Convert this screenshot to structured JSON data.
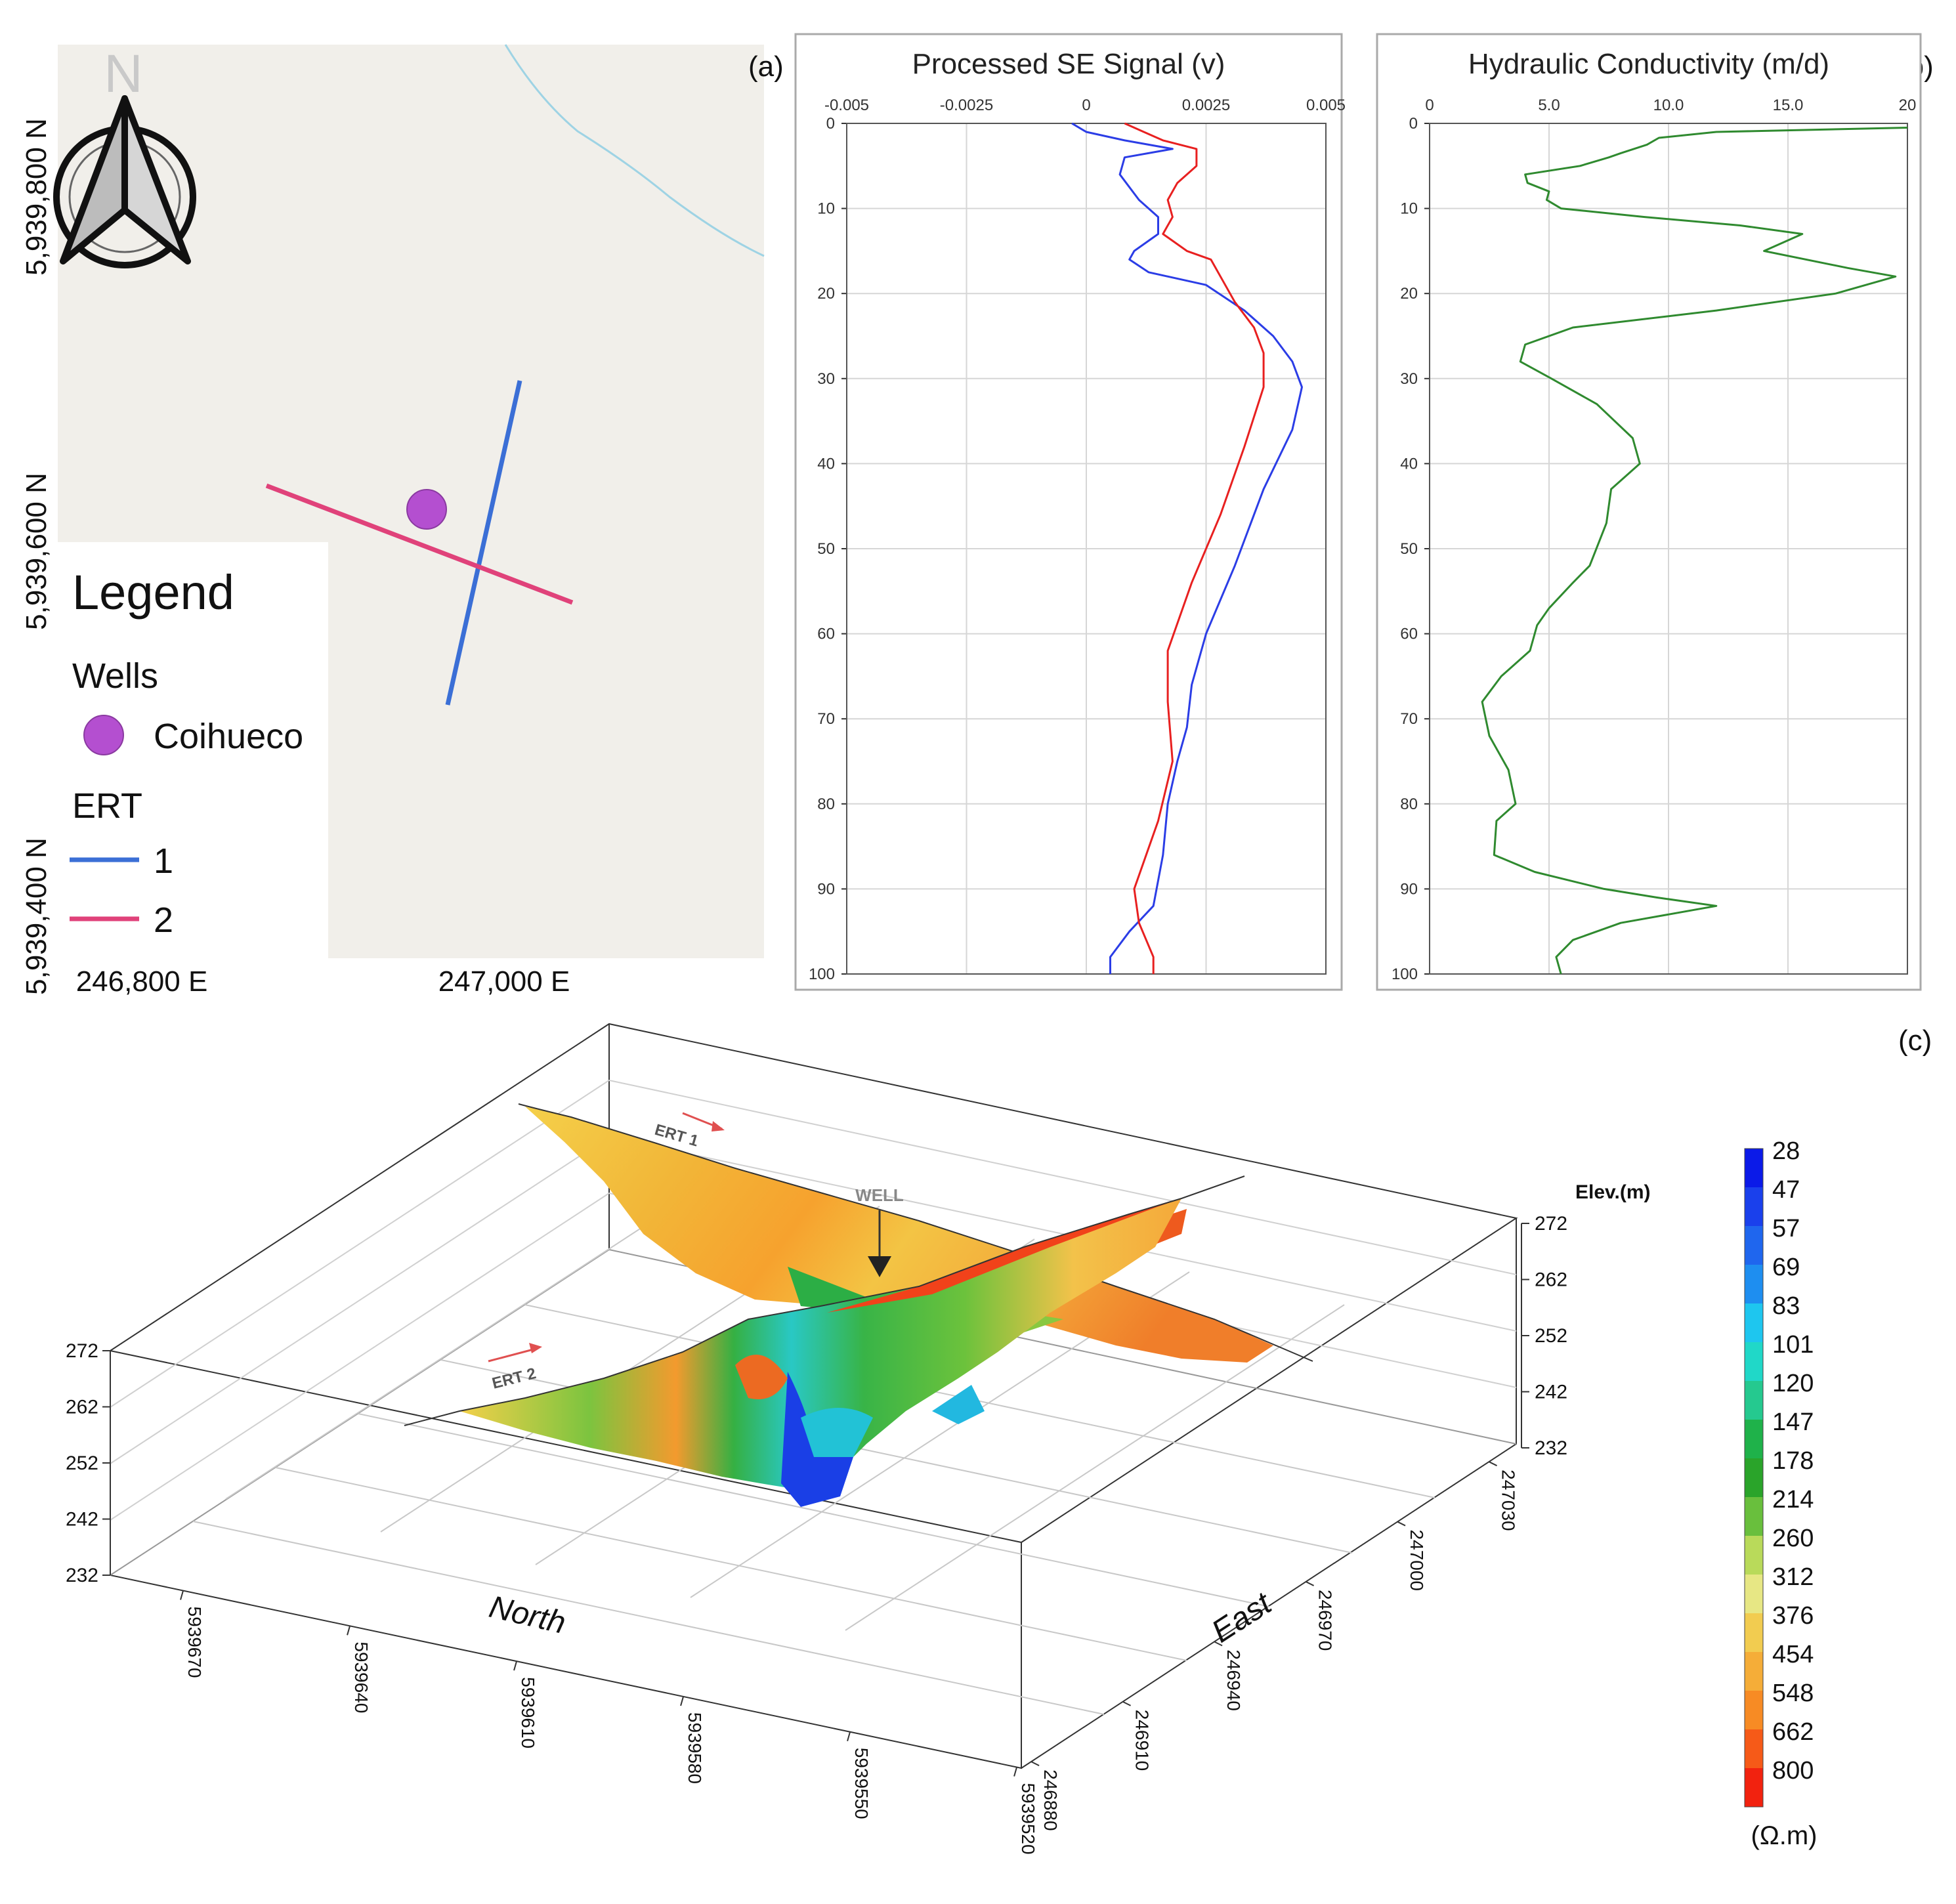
{
  "panel_labels": [
    "(a)",
    "(b)",
    "(c)"
  ],
  "map": {
    "north_label": "N",
    "y_ticks": [
      "5,939,800 N",
      "5,939,600 N",
      "5,939,400 N"
    ],
    "x_ticks": [
      "246,800 E",
      "247,000 E"
    ],
    "legend_title": "Legend",
    "wells_heading": "Wells",
    "well_name": "Coihueco",
    "ert_heading": "ERT",
    "ert_items": [
      "1",
      "2"
    ],
    "colors": {
      "ert1": "#3b6fd6",
      "ert2": "#e0427a",
      "well": "#b44fd0",
      "river": "#9ed3e4",
      "bg": "#f1efea"
    }
  },
  "chart_data": [
    {
      "type": "line",
      "title": "Processed SE Signal (v)",
      "x_ticks": [
        "-0.005",
        "-0.0025",
        "0",
        "0.0025",
        "0.005"
      ],
      "y_ticks": [
        "0",
        "10",
        "20",
        "30",
        "40",
        "50",
        "60",
        "70",
        "80",
        "90",
        "100"
      ],
      "xlim": [
        -0.005,
        0.005
      ],
      "ylim": [
        0,
        100
      ],
      "y_inverted": true,
      "grid": true,
      "series": [
        {
          "color": "#2b3de6",
          "points": [
            [
              -0.0003,
              0
            ],
            [
              0,
              1
            ],
            [
              0.0008,
              2
            ],
            [
              0.0018,
              3
            ],
            [
              0.0008,
              4
            ],
            [
              0.0007,
              6
            ],
            [
              0.0011,
              9
            ],
            [
              0.0015,
              11
            ],
            [
              0.0015,
              13
            ],
            [
              0.001,
              15
            ],
            [
              0.0009,
              16
            ],
            [
              0.0013,
              17.5
            ],
            [
              0.0025,
              19
            ],
            [
              0.0033,
              22
            ],
            [
              0.0039,
              25
            ],
            [
              0.0043,
              28
            ],
            [
              0.0045,
              31
            ],
            [
              0.0043,
              36
            ],
            [
              0.0037,
              43
            ],
            [
              0.0031,
              52
            ],
            [
              0.0025,
              60
            ],
            [
              0.0022,
              66
            ],
            [
              0.0021,
              71
            ],
            [
              0.0019,
              75
            ],
            [
              0.0017,
              80
            ],
            [
              0.0016,
              86
            ],
            [
              0.0014,
              92
            ],
            [
              0.0009,
              95
            ],
            [
              0.0005,
              98
            ],
            [
              0.0005,
              100
            ]
          ]
        },
        {
          "color": "#e82020",
          "points": [
            [
              0.0008,
              0
            ],
            [
              0.0012,
              1
            ],
            [
              0.0016,
              2
            ],
            [
              0.0023,
              3
            ],
            [
              0.0023,
              5
            ],
            [
              0.0019,
              7
            ],
            [
              0.0017,
              9
            ],
            [
              0.0018,
              11
            ],
            [
              0.0016,
              13
            ],
            [
              0.0021,
              15
            ],
            [
              0.0026,
              16
            ],
            [
              0.0028,
              18
            ],
            [
              0.0031,
              21
            ],
            [
              0.0035,
              24
            ],
            [
              0.0037,
              27
            ],
            [
              0.0037,
              31
            ],
            [
              0.0033,
              38
            ],
            [
              0.0028,
              46
            ],
            [
              0.0022,
              54
            ],
            [
              0.0017,
              62
            ],
            [
              0.0017,
              68
            ],
            [
              0.0018,
              75
            ],
            [
              0.0015,
              82
            ],
            [
              0.001,
              90
            ],
            [
              0.0011,
              94
            ],
            [
              0.0014,
              98
            ],
            [
              0.0014,
              100
            ]
          ]
        }
      ]
    },
    {
      "type": "line",
      "title": "Hydraulic Conductivity (m/d)",
      "x_ticks": [
        "0",
        "5.0",
        "10.0",
        "15.0",
        "20"
      ],
      "y_ticks": [
        "0",
        "10",
        "20",
        "30",
        "40",
        "50",
        "60",
        "70",
        "80",
        "90",
        "100"
      ],
      "xlim": [
        0,
        20
      ],
      "ylim": [
        0,
        100
      ],
      "y_inverted": true,
      "grid": true,
      "series": [
        {
          "color": "#2f8a2f",
          "points": [
            [
              20,
              0.5
            ],
            [
              12,
              1
            ],
            [
              9.6,
              1.7
            ],
            [
              9.1,
              2.5
            ],
            [
              8,
              3.5
            ],
            [
              7.5,
              4
            ],
            [
              6.3,
              5
            ],
            [
              4,
              6
            ],
            [
              4.1,
              7
            ],
            [
              5,
              8
            ],
            [
              4.9,
              9
            ],
            [
              5.5,
              10
            ],
            [
              9,
              11
            ],
            [
              13,
              12
            ],
            [
              15.6,
              13
            ],
            [
              14,
              15
            ],
            [
              17.5,
              17
            ],
            [
              19.5,
              18
            ],
            [
              17,
              20
            ],
            [
              12,
              22
            ],
            [
              6,
              24
            ],
            [
              4,
              26
            ],
            [
              3.8,
              28
            ],
            [
              5.1,
              30
            ],
            [
              7,
              33
            ],
            [
              8.5,
              37
            ],
            [
              8.8,
              40
            ],
            [
              7.6,
              43
            ],
            [
              7.4,
              47
            ],
            [
              6.7,
              52
            ],
            [
              6,
              54
            ],
            [
              5,
              57
            ],
            [
              4.5,
              59
            ],
            [
              4.2,
              62
            ],
            [
              3,
              65
            ],
            [
              2.2,
              68
            ],
            [
              2.5,
              72
            ],
            [
              3.3,
              76
            ],
            [
              3.6,
              80
            ],
            [
              2.8,
              82
            ],
            [
              2.7,
              86
            ],
            [
              4.4,
              88
            ],
            [
              7.3,
              90
            ],
            [
              9.5,
              91
            ],
            [
              12,
              92
            ],
            [
              8,
              94
            ],
            [
              6,
              96
            ],
            [
              5.3,
              98
            ],
            [
              5.5,
              100
            ]
          ]
        }
      ]
    },
    {
      "type": "table",
      "title": "Elev.(m)",
      "elevation_ticks": [
        "272",
        "262",
        "252",
        "242",
        "232"
      ],
      "north_label": "North",
      "north_ticks": [
        "5939670",
        "5939640",
        "5939610",
        "5939580",
        "5939550",
        "5939520"
      ],
      "east_label": "East",
      "east_ticks": [
        "246880",
        "246910",
        "246940",
        "246970",
        "247000",
        "247030"
      ],
      "annotations": [
        "ERT 1",
        "ERT 2",
        "WELL"
      ],
      "colorbar": {
        "unit": "(Ω.m)",
        "values": [
          "28",
          "47",
          "57",
          "69",
          "83",
          "101",
          "120",
          "147",
          "178",
          "214",
          "260",
          "312",
          "376",
          "454",
          "548",
          "662",
          "800"
        ],
        "colors": [
          "#0b1ae8",
          "#1a40ec",
          "#1f66ee",
          "#1e8ef0",
          "#1ec6ef",
          "#20d8c8",
          "#25c98f",
          "#1fb24a",
          "#2aa42a",
          "#69bf3d",
          "#b9da5a",
          "#e7e784",
          "#f2cc50",
          "#f5ad38",
          "#f78b24",
          "#f65a18",
          "#f2220f"
        ]
      }
    }
  ]
}
